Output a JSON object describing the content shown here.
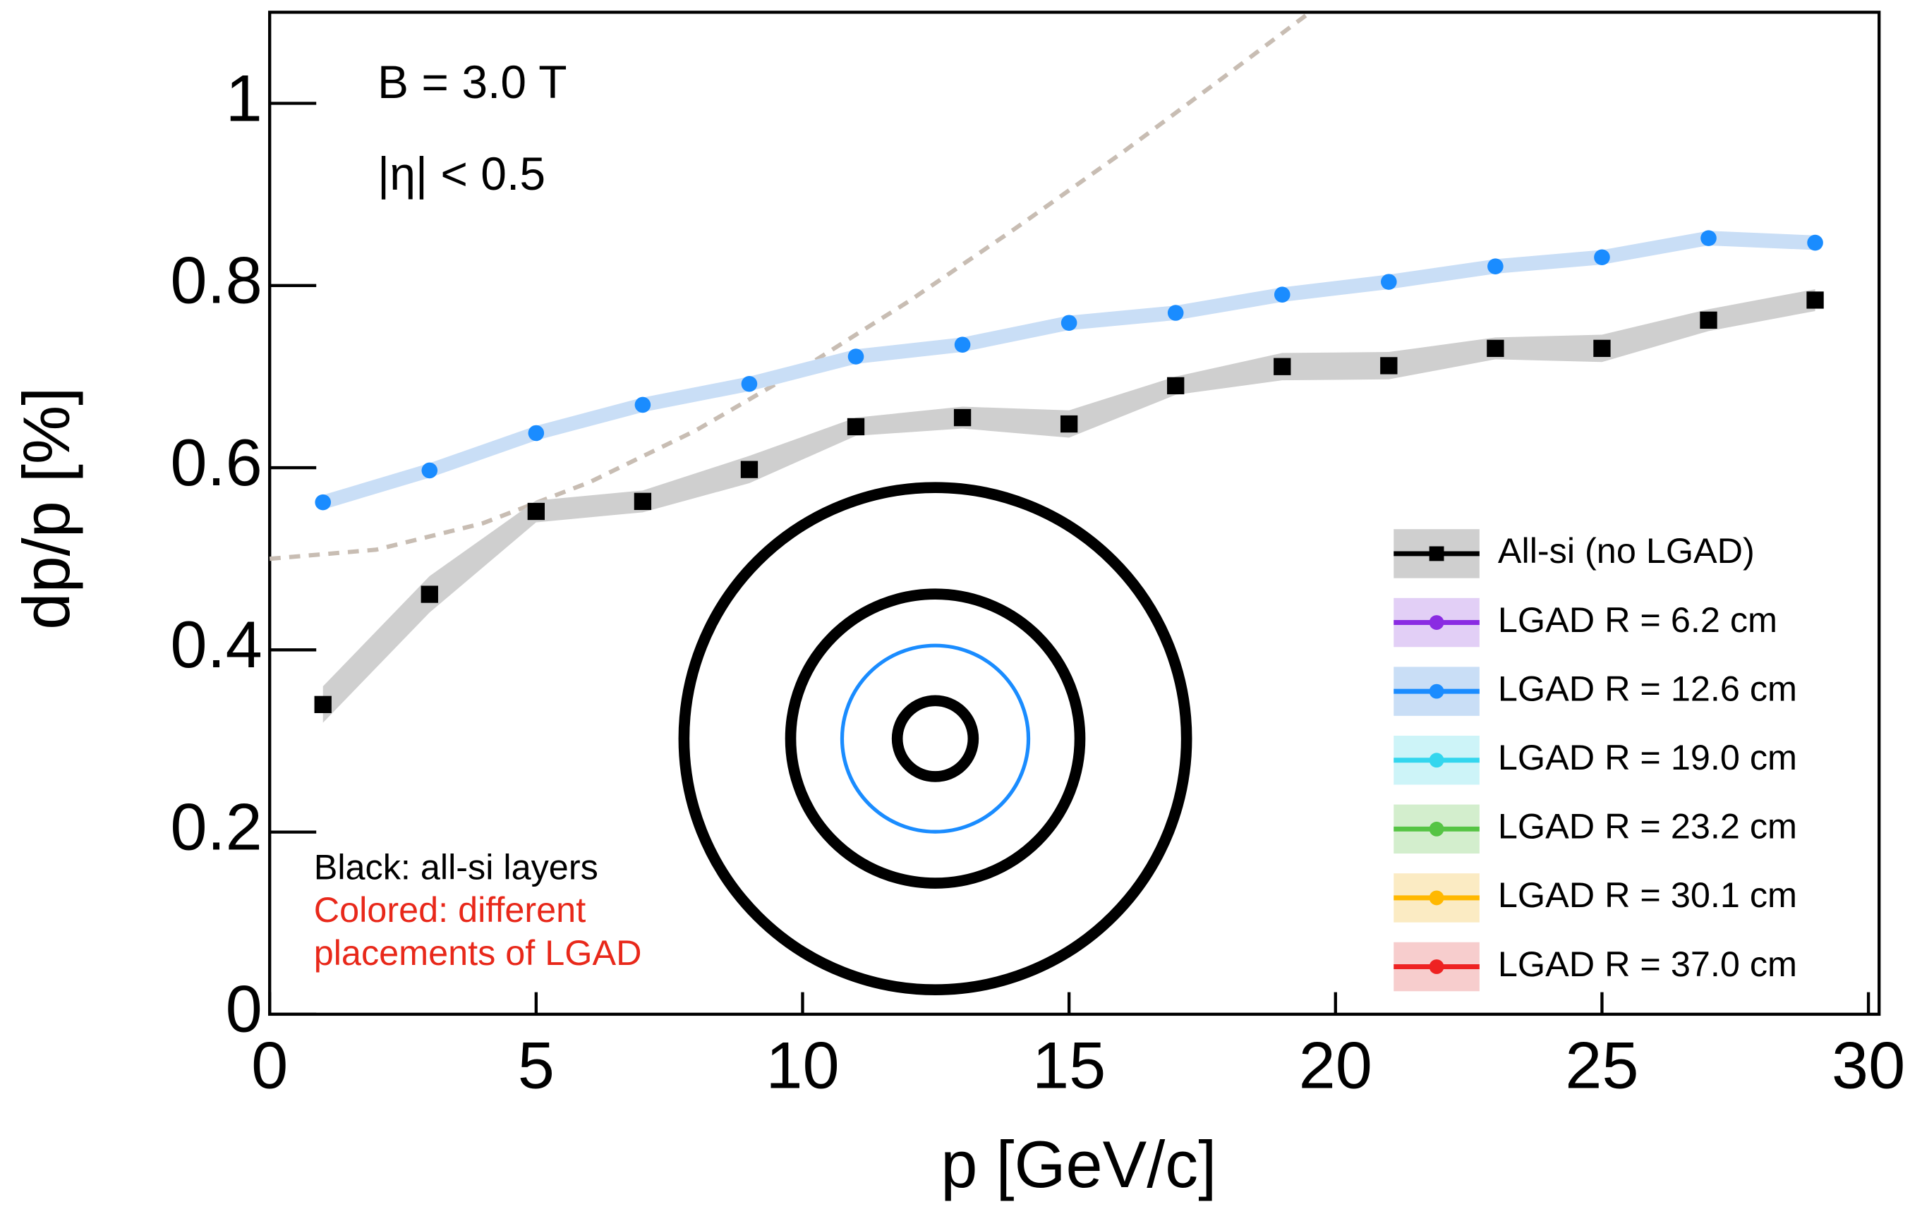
{
  "chart_data": {
    "type": "line",
    "annotations": [
      "B = 3.0 T",
      "|η| < 0.5"
    ],
    "notes": {
      "black": "Black: all-si layers",
      "colored": [
        "Colored: different",
        "placements of LGAD"
      ]
    },
    "x_label": "p [GeV/c]",
    "y_label": "dp/p [%]",
    "xlim": [
      0,
      30.2
    ],
    "ylim": [
      0,
      1.1
    ],
    "xticks": [
      0,
      5,
      10,
      15,
      20,
      25,
      30
    ],
    "yticks": [
      0,
      0.2,
      0.4,
      0.6,
      0.8,
      1
    ],
    "legend": "lower right",
    "x": [
      1,
      3,
      5,
      7,
      9,
      11,
      13,
      15,
      17,
      19,
      21,
      23,
      25,
      27,
      29
    ],
    "series": [
      {
        "name": "All-si (no LGAD)",
        "color": "#000000",
        "band_color": "#cfcfcf",
        "marker": "square",
        "values": [
          0.34,
          0.461,
          0.552,
          0.563,
          0.598,
          0.645,
          0.655,
          0.648,
          0.69,
          0.711,
          0.712,
          0.731,
          0.731,
          0.762,
          0.784
        ],
        "errors": [
          0.02,
          0.02,
          0.012,
          0.012,
          0.015,
          0.01,
          0.012,
          0.015,
          0.01,
          0.015,
          0.015,
          0.012,
          0.015,
          0.012,
          0.012
        ]
      },
      {
        "name": "LGAD R =  6.2 cm",
        "color": "#8a2be2",
        "band_color": "#e2cff6",
        "marker": "circle",
        "values": [
          null,
          null,
          null,
          null,
          null,
          null,
          null,
          null,
          null,
          null,
          null,
          null,
          null,
          null,
          null
        ]
      },
      {
        "name": "LGAD R = 12.6 cm",
        "color": "#1a8cff",
        "band_color": "#c9def6",
        "marker": "circle",
        "values": [
          0.562,
          0.597,
          0.638,
          0.669,
          0.692,
          0.722,
          0.735,
          0.759,
          0.77,
          0.79,
          0.804,
          0.821,
          0.831,
          0.852,
          0.847
        ],
        "errors": [
          0.008,
          0.008,
          0.008,
          0.008,
          0.008,
          0.008,
          0.008,
          0.008,
          0.008,
          0.008,
          0.008,
          0.008,
          0.008,
          0.008,
          0.008
        ]
      },
      {
        "name": "LGAD R = 19.0 cm",
        "color": "#33d6ee",
        "band_color": "#cdf4f8",
        "marker": "circle",
        "values": [
          null,
          null,
          null,
          null,
          null,
          null,
          null,
          null,
          null,
          null,
          null,
          null,
          null,
          null,
          null
        ]
      },
      {
        "name": "LGAD R = 23.2 cm",
        "color": "#55c444",
        "band_color": "#d3eecd",
        "marker": "circle",
        "values": [
          null,
          null,
          null,
          null,
          null,
          null,
          null,
          null,
          null,
          null,
          null,
          null,
          null,
          null,
          null
        ]
      },
      {
        "name": "LGAD R = 30.1 cm",
        "color": "#ffb800",
        "band_color": "#fbebc3",
        "marker": "circle",
        "values": [
          null,
          null,
          null,
          null,
          null,
          null,
          null,
          null,
          null,
          null,
          null,
          null,
          null,
          null,
          null
        ]
      },
      {
        "name": "LGAD R = 37.0 cm",
        "color": "#ee2222",
        "band_color": "#f7cdcd",
        "marker": "circle",
        "values": [
          null,
          null,
          null,
          null,
          null,
          null,
          null,
          null,
          null,
          null,
          null,
          null,
          null,
          null,
          null
        ]
      }
    ],
    "reference_curve": {
      "color": "#c8bdb3",
      "x": [
        0,
        2,
        4,
        6,
        8,
        10,
        12,
        14,
        16,
        18,
        19.5
      ],
      "values": [
        0.5,
        0.51,
        0.539,
        0.584,
        0.641,
        0.709,
        0.783,
        0.863,
        0.946,
        1.033,
        1.099
      ]
    }
  }
}
